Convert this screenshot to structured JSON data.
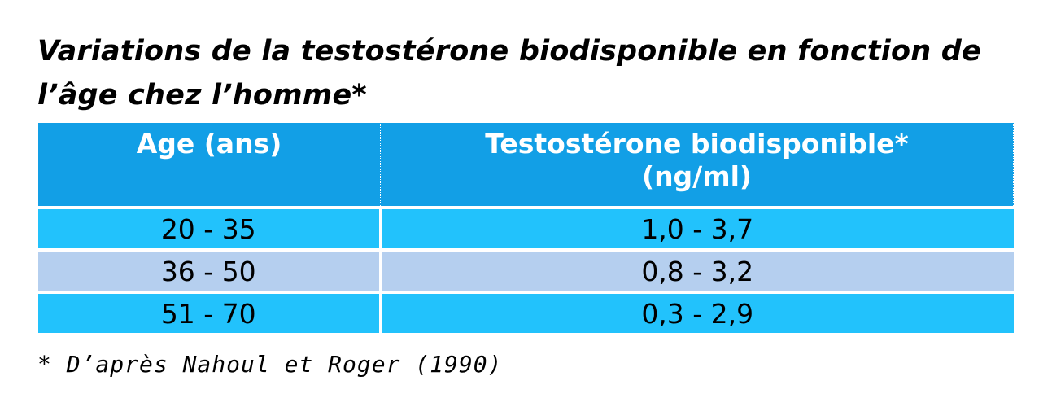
{
  "title": "Variations de la testostérone biodisponible en fonction de l’âge chez l’homme*",
  "table": {
    "columns": [
      "Age (ans)",
      "Testostérone biodisponible* (ng/ml)"
    ],
    "header_col2_line2": "(ng/ml)",
    "header_col2_line1": "Testostérone biodisponible*",
    "rows": [
      {
        "age": "20 - 35",
        "value": "1,0 - 3,7"
      },
      {
        "age": "36 - 50",
        "value": "0,8 - 3,2"
      },
      {
        "age": "51 - 70",
        "value": "0,3 - 2,9"
      }
    ]
  },
  "footnote": "* D’après Nahoul et Roger (1990)",
  "colors": {
    "header": "#129fe6",
    "row_light_blue": "#22c2fc",
    "row_pale_blue": "#b5cfef"
  }
}
